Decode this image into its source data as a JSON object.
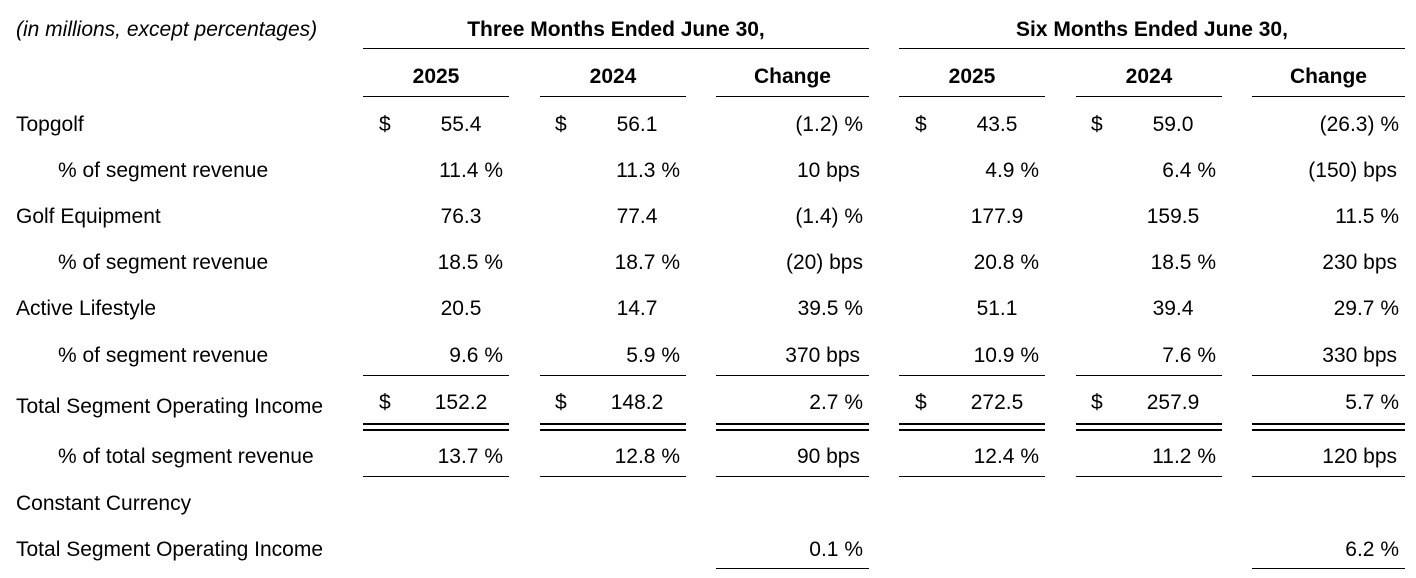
{
  "header": {
    "units_note": "(in millions, except percentages)",
    "group_three_months": "Three Months Ended June 30,",
    "group_six_months": "Six Months Ended June 30,",
    "columns": [
      "2025",
      "2024",
      "Change",
      "2025",
      "2024",
      "Change"
    ]
  },
  "rows": [
    {
      "label": "Topgolf",
      "q25_dollar": "$",
      "q25": "55.4",
      "q24_dollar": "$",
      "q24": "56.1",
      "q_change": "(1.2) %",
      "h25_dollar": "$",
      "h25": "43.5",
      "h24_dollar": "$",
      "h24": "59.0",
      "h_change": "(26.3) %"
    },
    {
      "label": "% of segment revenue",
      "q25": "11.4 %",
      "q24": "11.3 %",
      "q_change": "10 bps",
      "h25": "4.9 %",
      "h24": "6.4 %",
      "h_change": "(150) bps"
    },
    {
      "label": "Golf Equipment",
      "q25": "76.3",
      "q24": "77.4",
      "q_change": "(1.4) %",
      "h25": "177.9",
      "h24": "159.5",
      "h_change": "11.5 %"
    },
    {
      "label": "% of segment revenue",
      "q25": "18.5 %",
      "q24": "18.7 %",
      "q_change": "(20) bps",
      "h25": "20.8 %",
      "h24": "18.5 %",
      "h_change": "230 bps"
    },
    {
      "label": "Active Lifestyle",
      "q25": "20.5",
      "q24": "14.7",
      "q_change": "39.5 %",
      "h25": "51.1",
      "h24": "39.4",
      "h_change": "29.7 %"
    },
    {
      "label": "% of segment revenue",
      "q25": "9.6 %",
      "q24": "5.9 %",
      "q_change": "370 bps",
      "h25": "10.9 %",
      "h24": "7.6 %",
      "h_change": "330 bps"
    },
    {
      "label": "Total Segment Operating Income",
      "q25_dollar": "$",
      "q25": "152.2",
      "q24_dollar": "$",
      "q24": "148.2",
      "q_change": "2.7 %",
      "h25_dollar": "$",
      "h25": "272.5",
      "h24_dollar": "$",
      "h24": "257.9",
      "h_change": "5.7 %"
    },
    {
      "label": "% of total segment revenue",
      "q25": "13.7 %",
      "q24": "12.8 %",
      "q_change": "90 bps",
      "h25": "12.4 %",
      "h24": "11.2 %",
      "h_change": "120 bps"
    },
    {
      "label": "Constant Currency"
    },
    {
      "label": "Total Segment Operating Income",
      "q_change": "0.1 %",
      "h_change": "6.2 %"
    }
  ]
}
